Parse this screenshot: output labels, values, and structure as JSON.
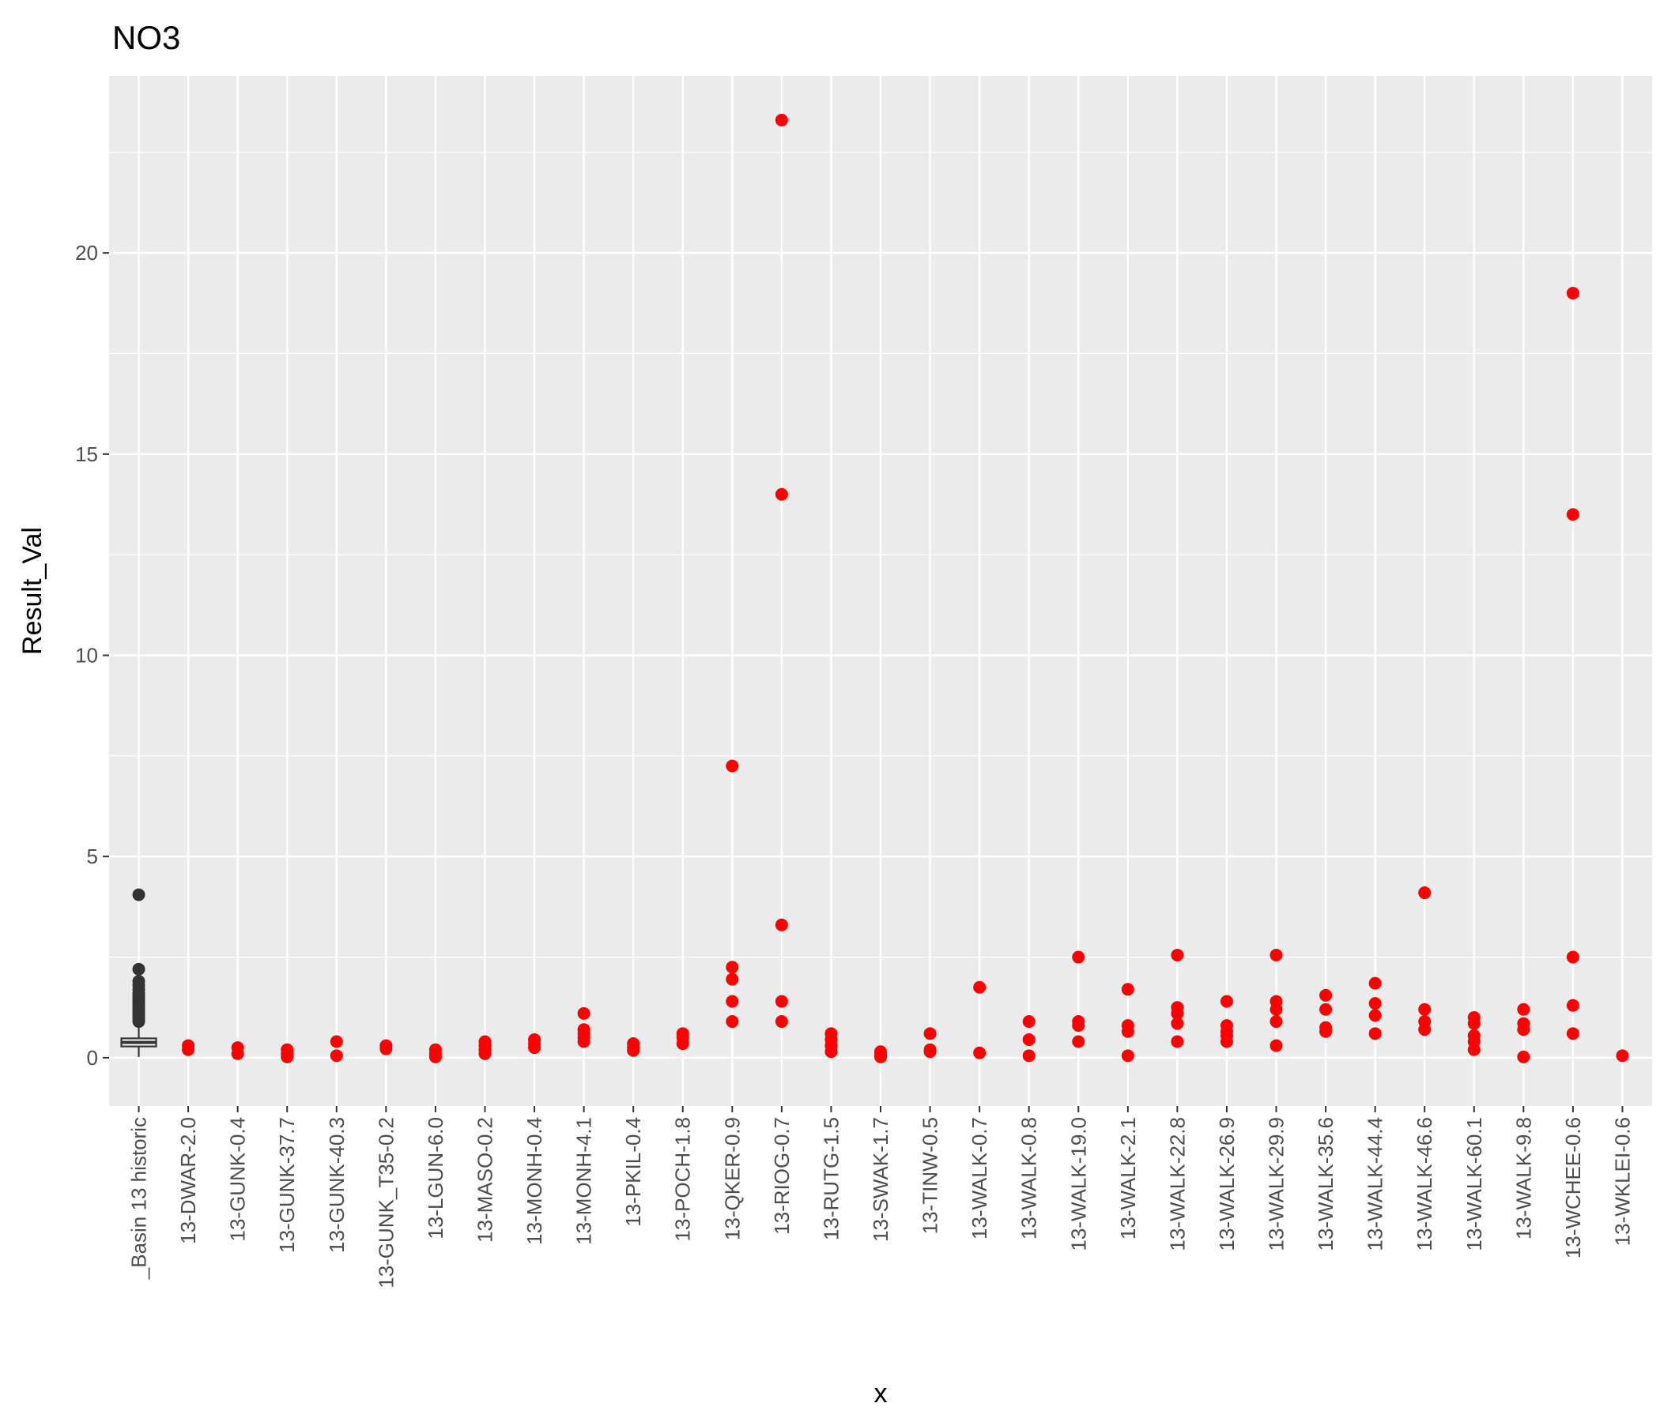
{
  "chart_data": {
    "type": "scatter",
    "title": "NO3",
    "xlabel": "x",
    "ylabel": "Result_Val",
    "ylim": [
      -1.2,
      24.4
    ],
    "yticks": [
      0,
      5,
      10,
      15,
      20
    ],
    "grid": true,
    "legend": "none",
    "colors": {
      "panel": "#ebebeb",
      "grid": "#ffffff",
      "points": "#ff0000",
      "boxplot": "#333333"
    },
    "categories": [
      "_Basin 13 historic",
      "13-DWAR-2.0",
      "13-GUNK-0.4",
      "13-GUNK-37.7",
      "13-GUNK-40.3",
      "13-GUNK_T35-0.2",
      "13-LGUN-6.0",
      "13-MASO-0.2",
      "13-MONH-0.4",
      "13-MONH-4.1",
      "13-PKIL-0.4",
      "13-POCH-1.8",
      "13-QKER-0.9",
      "13-RIOG-0.7",
      "13-RUTG-1.5",
      "13-SWAK-1.7",
      "13-TINW-0.5",
      "13-WALK-0.7",
      "13-WALK-0.8",
      "13-WALK-19.0",
      "13-WALK-2.1",
      "13-WALK-22.8",
      "13-WALK-26.9",
      "13-WALK-29.9",
      "13-WALK-35.6",
      "13-WALK-44.4",
      "13-WALK-46.6",
      "13-WALK-60.1",
      "13-WALK-9.8",
      "13-WCHEE-0.6",
      "13-WKLEI-0.6"
    ],
    "boxplot": {
      "category": "_Basin 13 historic",
      "q1": 0.28,
      "median": 0.38,
      "q3": 0.48,
      "whisker_low": 0.02,
      "whisker_high": 0.85,
      "outliers": [
        0.9,
        0.95,
        1.0,
        1.05,
        1.1,
        1.15,
        1.2,
        1.25,
        1.3,
        1.35,
        1.4,
        1.45,
        1.5,
        1.55,
        1.6,
        1.7,
        1.8,
        1.9,
        2.2,
        4.05
      ]
    },
    "series": [
      {
        "points": [
          {
            "x": "13-DWAR-2.0",
            "y": 0.3
          },
          {
            "x": "13-DWAR-2.0",
            "y": 0.2
          },
          {
            "x": "13-GUNK-0.4",
            "y": 0.25
          },
          {
            "x": "13-GUNK-0.4",
            "y": 0.1
          },
          {
            "x": "13-GUNK-37.7",
            "y": 0.2
          },
          {
            "x": "13-GUNK-37.7",
            "y": 0.1
          },
          {
            "x": "13-GUNK-37.7",
            "y": 0.02
          },
          {
            "x": "13-GUNK-40.3",
            "y": 0.4
          },
          {
            "x": "13-GUNK-40.3",
            "y": 0.05
          },
          {
            "x": "13-GUNK_T35-0.2",
            "y": 0.3
          },
          {
            "x": "13-GUNK_T35-0.2",
            "y": 0.22
          },
          {
            "x": "13-LGUN-6.0",
            "y": 0.2
          },
          {
            "x": "13-LGUN-6.0",
            "y": 0.1
          },
          {
            "x": "13-LGUN-6.0",
            "y": 0.02
          },
          {
            "x": "13-MASO-0.2",
            "y": 0.4
          },
          {
            "x": "13-MASO-0.2",
            "y": 0.3
          },
          {
            "x": "13-MASO-0.2",
            "y": 0.2
          },
          {
            "x": "13-MASO-0.2",
            "y": 0.1
          },
          {
            "x": "13-MONH-0.4",
            "y": 0.45
          },
          {
            "x": "13-MONH-0.4",
            "y": 0.35
          },
          {
            "x": "13-MONH-0.4",
            "y": 0.25
          },
          {
            "x": "13-MONH-4.1",
            "y": 1.1
          },
          {
            "x": "13-MONH-4.1",
            "y": 0.7
          },
          {
            "x": "13-MONH-4.1",
            "y": 0.6
          },
          {
            "x": "13-MONH-4.1",
            "y": 0.5
          },
          {
            "x": "13-MONH-4.1",
            "y": 0.4
          },
          {
            "x": "13-PKIL-0.4",
            "y": 0.35
          },
          {
            "x": "13-PKIL-0.4",
            "y": 0.25
          },
          {
            "x": "13-PKIL-0.4",
            "y": 0.18
          },
          {
            "x": "13-POCH-1.8",
            "y": 0.6
          },
          {
            "x": "13-POCH-1.8",
            "y": 0.5
          },
          {
            "x": "13-POCH-1.8",
            "y": 0.35
          },
          {
            "x": "13-QKER-0.9",
            "y": 7.25
          },
          {
            "x": "13-QKER-0.9",
            "y": 2.25
          },
          {
            "x": "13-QKER-0.9",
            "y": 1.95
          },
          {
            "x": "13-QKER-0.9",
            "y": 1.4
          },
          {
            "x": "13-QKER-0.9",
            "y": 0.9
          },
          {
            "x": "13-RIOG-0.7",
            "y": 23.3
          },
          {
            "x": "13-RIOG-0.7",
            "y": 14.0
          },
          {
            "x": "13-RIOG-0.7",
            "y": 3.3
          },
          {
            "x": "13-RIOG-0.7",
            "y": 1.4
          },
          {
            "x": "13-RIOG-0.7",
            "y": 0.9
          },
          {
            "x": "13-RUTG-1.5",
            "y": 0.6
          },
          {
            "x": "13-RUTG-1.5",
            "y": 0.45
          },
          {
            "x": "13-RUTG-1.5",
            "y": 0.3
          },
          {
            "x": "13-RUTG-1.5",
            "y": 0.15
          },
          {
            "x": "13-SWAK-1.7",
            "y": 0.15
          },
          {
            "x": "13-SWAK-1.7",
            "y": 0.08
          },
          {
            "x": "13-SWAK-1.7",
            "y": 0.02
          },
          {
            "x": "13-TINW-0.5",
            "y": 0.6
          },
          {
            "x": "13-TINW-0.5",
            "y": 0.2
          },
          {
            "x": "13-TINW-0.5",
            "y": 0.15
          },
          {
            "x": "13-WALK-0.7",
            "y": 1.75
          },
          {
            "x": "13-WALK-0.7",
            "y": 0.12
          },
          {
            "x": "13-WALK-0.8",
            "y": 0.9
          },
          {
            "x": "13-WALK-0.8",
            "y": 0.45
          },
          {
            "x": "13-WALK-0.8",
            "y": 0.05
          },
          {
            "x": "13-WALK-19.0",
            "y": 2.5
          },
          {
            "x": "13-WALK-19.0",
            "y": 0.9
          },
          {
            "x": "13-WALK-19.0",
            "y": 0.8
          },
          {
            "x": "13-WALK-19.0",
            "y": 0.4
          },
          {
            "x": "13-WALK-2.1",
            "y": 1.7
          },
          {
            "x": "13-WALK-2.1",
            "y": 0.8
          },
          {
            "x": "13-WALK-2.1",
            "y": 0.65
          },
          {
            "x": "13-WALK-2.1",
            "y": 0.05
          },
          {
            "x": "13-WALK-22.8",
            "y": 2.55
          },
          {
            "x": "13-WALK-22.8",
            "y": 1.25
          },
          {
            "x": "13-WALK-22.8",
            "y": 1.1
          },
          {
            "x": "13-WALK-22.8",
            "y": 0.85
          },
          {
            "x": "13-WALK-22.8",
            "y": 0.4
          },
          {
            "x": "13-WALK-26.9",
            "y": 1.4
          },
          {
            "x": "13-WALK-26.9",
            "y": 0.8
          },
          {
            "x": "13-WALK-26.9",
            "y": 0.65
          },
          {
            "x": "13-WALK-26.9",
            "y": 0.55
          },
          {
            "x": "13-WALK-26.9",
            "y": 0.4
          },
          {
            "x": "13-WALK-29.9",
            "y": 2.55
          },
          {
            "x": "13-WALK-29.9",
            "y": 1.4
          },
          {
            "x": "13-WALK-29.9",
            "y": 1.2
          },
          {
            "x": "13-WALK-29.9",
            "y": 0.9
          },
          {
            "x": "13-WALK-29.9",
            "y": 0.3
          },
          {
            "x": "13-WALK-35.6",
            "y": 1.55
          },
          {
            "x": "13-WALK-35.6",
            "y": 1.2
          },
          {
            "x": "13-WALK-35.6",
            "y": 0.75
          },
          {
            "x": "13-WALK-35.6",
            "y": 0.65
          },
          {
            "x": "13-WALK-44.4",
            "y": 1.85
          },
          {
            "x": "13-WALK-44.4",
            "y": 1.35
          },
          {
            "x": "13-WALK-44.4",
            "y": 1.05
          },
          {
            "x": "13-WALK-44.4",
            "y": 0.6
          },
          {
            "x": "13-WALK-46.6",
            "y": 4.1
          },
          {
            "x": "13-WALK-46.6",
            "y": 1.2
          },
          {
            "x": "13-WALK-46.6",
            "y": 0.9
          },
          {
            "x": "13-WALK-46.6",
            "y": 0.7
          },
          {
            "x": "13-WALK-60.1",
            "y": 1.0
          },
          {
            "x": "13-WALK-60.1",
            "y": 0.85
          },
          {
            "x": "13-WALK-60.1",
            "y": 0.55
          },
          {
            "x": "13-WALK-60.1",
            "y": 0.4
          },
          {
            "x": "13-WALK-60.1",
            "y": 0.2
          },
          {
            "x": "13-WALK-9.8",
            "y": 1.2
          },
          {
            "x": "13-WALK-9.8",
            "y": 0.85
          },
          {
            "x": "13-WALK-9.8",
            "y": 0.7
          },
          {
            "x": "13-WALK-9.8",
            "y": 0.02
          },
          {
            "x": "13-WCHEE-0.6",
            "y": 19.0
          },
          {
            "x": "13-WCHEE-0.6",
            "y": 13.5
          },
          {
            "x": "13-WCHEE-0.6",
            "y": 2.5
          },
          {
            "x": "13-WCHEE-0.6",
            "y": 1.3
          },
          {
            "x": "13-WCHEE-0.6",
            "y": 0.6
          },
          {
            "x": "13-WKLEI-0.6",
            "y": 0.05
          }
        ]
      }
    ]
  }
}
